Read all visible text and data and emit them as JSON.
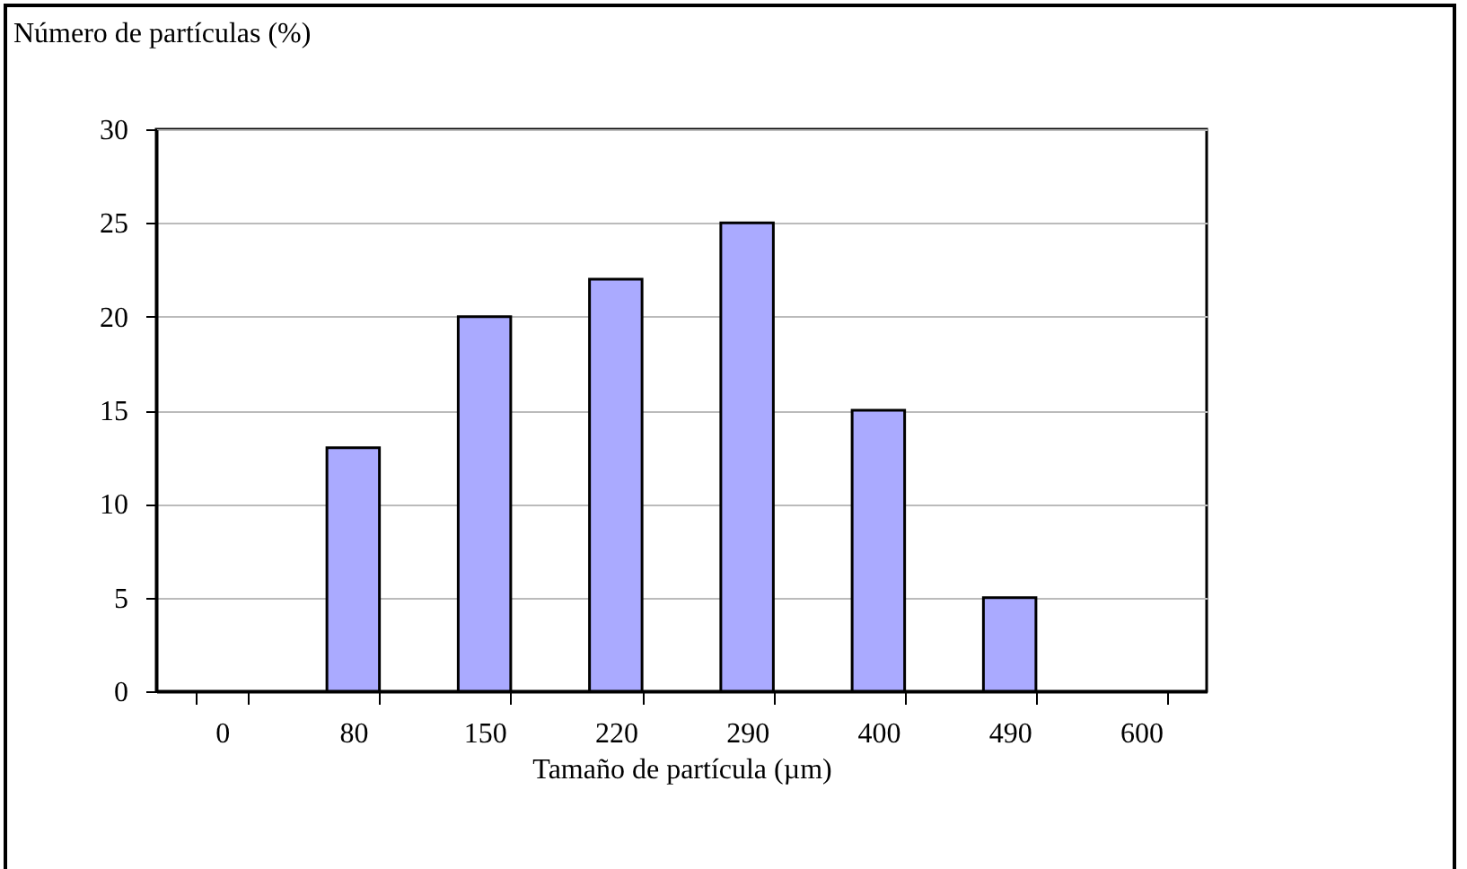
{
  "chart_data": {
    "type": "bar",
    "ylabel": "Número de partículas (%)",
    "xlabel": "Tamaño de partícula (µm)",
    "categories": [
      "0",
      "80",
      "150",
      "220",
      "290",
      "400",
      "490",
      "600"
    ],
    "values": [
      null,
      13,
      20,
      22,
      25,
      15,
      5,
      null
    ],
    "color": "#aaaaff",
    "ylim": [
      0,
      30
    ],
    "yticks": [
      0,
      5,
      10,
      15,
      20,
      25,
      30
    ],
    "grid": "y"
  }
}
